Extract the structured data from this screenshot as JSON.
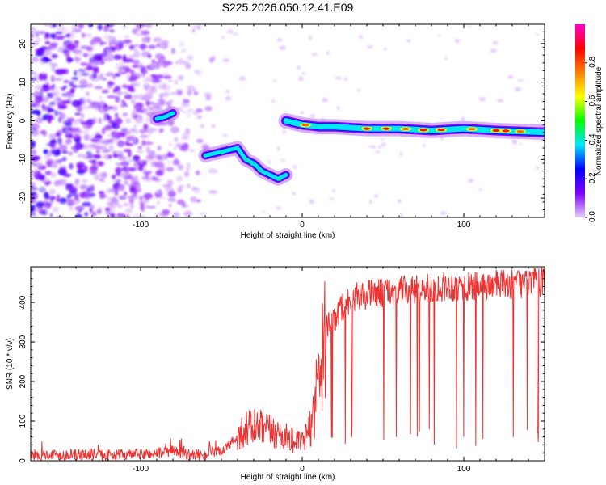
{
  "title": "S225.2026.050.12.41.E09",
  "chart_data": [
    {
      "type": "heatmap",
      "xlabel": "Height of straight line (km)",
      "ylabel": "Frequency (Hz)",
      "xlim": [
        -168,
        150
      ],
      "ylim": [
        -25,
        25
      ],
      "xticks": [
        -100,
        0,
        100
      ],
      "yticks": [
        -20,
        -10,
        0,
        10,
        20
      ],
      "colorbar": {
        "label": "Normalized spectral amplitude",
        "range": [
          0,
          1
        ],
        "ticks": [
          "0.0",
          "0.2",
          "0.4",
          "0.6",
          "0.8"
        ],
        "tick_values": [
          0.0,
          0.2,
          0.4,
          0.6,
          0.8
        ],
        "colors": [
          "#e6ccff",
          "#7f00ff",
          "#0000ff",
          "#00e5ff",
          "#00ff00",
          "#ffff00",
          "#ff8000",
          "#ff0000",
          "#ff00cc"
        ]
      },
      "features": [
        {
          "name": "noise region",
          "x_range": [
            -168,
            -60
          ],
          "amplitude": 0.15
        },
        {
          "name": "short segment",
          "points": [
            [
              -90,
              0.5
            ],
            [
              -85,
              1
            ],
            [
              -80,
              2
            ]
          ],
          "amplitude": 0.35
        },
        {
          "name": "descending trace",
          "points": [
            [
              -60,
              -9
            ],
            [
              -50,
              -8
            ],
            [
              -40,
              -7
            ],
            [
              -35,
              -10
            ],
            [
              -30,
              -11
            ],
            [
              -25,
              -13
            ],
            [
              -20,
              -14
            ],
            [
              -15,
              -15
            ],
            [
              -10,
              -14
            ]
          ],
          "amplitude": 0.35
        },
        {
          "name": "main trace",
          "points": [
            [
              -10,
              0
            ],
            [
              0,
              -1
            ],
            [
              10,
              -1.5
            ],
            [
              20,
              -1.5
            ],
            [
              40,
              -2
            ],
            [
              60,
              -2
            ],
            [
              80,
              -2.5
            ],
            [
              100,
              -2
            ],
            [
              120,
              -2.5
            ],
            [
              150,
              -3
            ]
          ],
          "amplitude": 0.8
        }
      ]
    },
    {
      "type": "line",
      "xlabel": "Height of straight line (km)",
      "ylabel": "SNR (10 * v/v)",
      "xlim": [
        -168,
        150
      ],
      "ylim": [
        0,
        490
      ],
      "xticks": [
        -100,
        0,
        100
      ],
      "yticks": [
        0,
        100,
        200,
        300,
        400
      ],
      "series": [
        {
          "name": "SNR",
          "color": "#ee3333",
          "x": [
            -168,
            -150,
            -130,
            -110,
            -90,
            -80,
            -70,
            -60,
            -50,
            -45,
            -40,
            -35,
            -30,
            -25,
            -20,
            -15,
            -10,
            -5,
            0,
            5,
            8,
            10,
            12,
            15,
            20,
            25,
            30,
            40,
            50,
            60,
            70,
            80,
            90,
            100,
            110,
            120,
            130,
            140,
            150
          ],
          "values": [
            15,
            15,
            15,
            15,
            18,
            25,
            15,
            15,
            25,
            40,
            60,
            80,
            85,
            80,
            75,
            70,
            60,
            50,
            45,
            80,
            150,
            220,
            280,
            330,
            360,
            390,
            410,
            420,
            425,
            430,
            430,
            435,
            440,
            440,
            440,
            445,
            445,
            450,
            450
          ]
        }
      ]
    }
  ]
}
